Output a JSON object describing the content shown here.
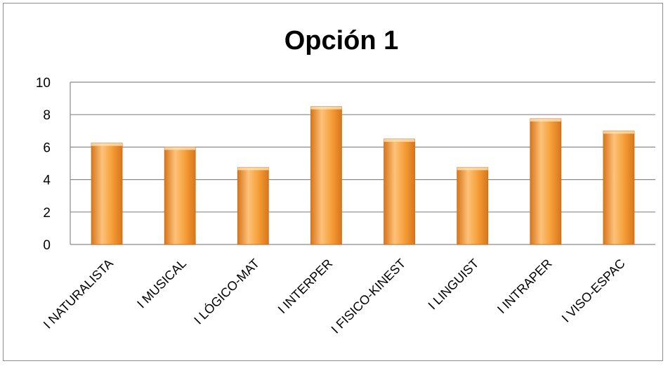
{
  "chart_data": {
    "type": "bar",
    "title": "Opción 1",
    "xlabel": "",
    "ylabel": "",
    "ylim": [
      0,
      10
    ],
    "yticks": [
      "0",
      "2",
      "4",
      "6",
      "8",
      "10"
    ],
    "grid": true,
    "legend": "none",
    "categories": [
      "I NATURALISTA",
      "I MUSICAL",
      "I LÓGICO-MAT",
      "I INTERPER",
      "I FISICO-KINEST",
      "I LINGUIST",
      "I INTRAPER",
      "I VISO-ESPAC"
    ],
    "values": [
      6.25,
      6.0,
      4.75,
      8.5,
      6.5,
      4.75,
      7.75,
      7.0
    ],
    "colors": {
      "bar_light": "#fdc27a",
      "bar_mid": "#f7a13a",
      "bar_dark": "#d8761a",
      "grid": "#8a8a8a"
    }
  }
}
